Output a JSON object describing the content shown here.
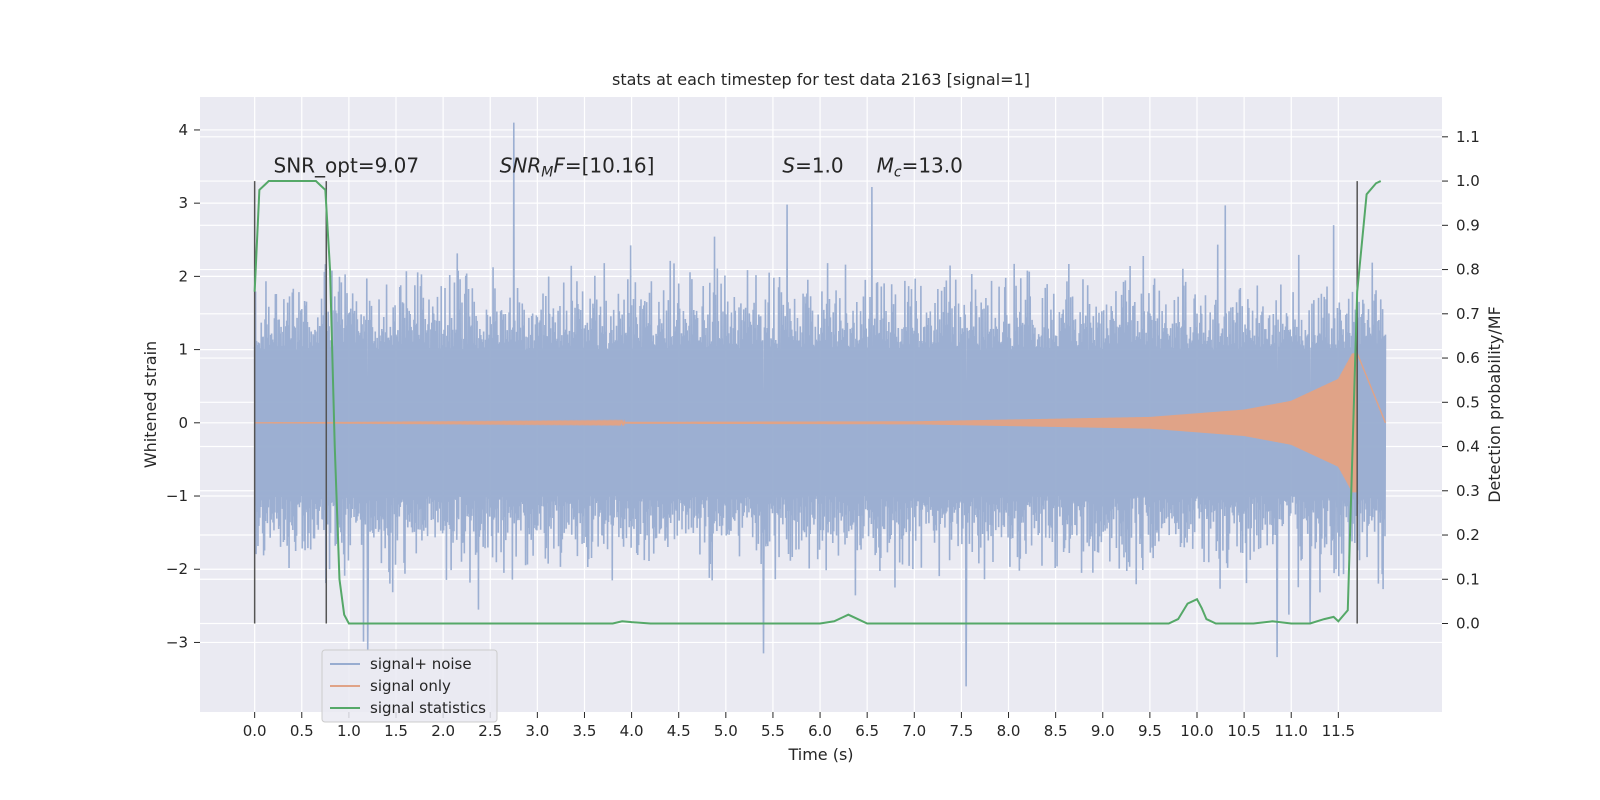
{
  "chart_data": {
    "type": "line",
    "title": "stats at each timestep for test data 2163 [signal=1]",
    "xlabel": "Time (s)",
    "ylabel": "Whitened strain",
    "ylabel_right": "Detection probability/MF",
    "xlim": [
      -0.58,
      12.6
    ],
    "ylim": [
      -3.95,
      4.45
    ],
    "ylim_right": [
      -0.2,
      1.19
    ],
    "x_ticks": [
      "0.0",
      "0.5",
      "1.0",
      "1.5",
      "2.0",
      "2.5",
      "3.0",
      "3.5",
      "4.0",
      "4.5",
      "5.0",
      "5.5",
      "6.0",
      "6.5",
      "7.0",
      "7.5",
      "8.0",
      "8.5",
      "9.0",
      "9.5",
      "10.0",
      "10.5",
      "11.0",
      "11.5"
    ],
    "y_ticks": [
      "4",
      "3",
      "2",
      "1",
      "0",
      "−1",
      "−2",
      "−3"
    ],
    "y_ticks_right": [
      "1.1",
      "1.0",
      "0.9",
      "0.8",
      "0.7",
      "0.6",
      "0.5",
      "0.4",
      "0.3",
      "0.2",
      "0.1",
      "0.0"
    ],
    "grid": true,
    "legend_position": "lower-left",
    "colors": {
      "background": "#eaeaf2",
      "grid": "#ffffff",
      "noise": "#98acd0",
      "signal": "#e0a387",
      "stats": "#55a868",
      "vline": "#555555"
    },
    "series": [
      {
        "name": "signal+ noise",
        "description_values": {
          "t_start": 0.0,
          "t_end": 12.0,
          "typical_range": [
            -1.5,
            1.5
          ],
          "spikes": [
            [
              2.75,
              4.1
            ],
            [
              5.65,
              2.98
            ],
            [
              6.55,
              3.22
            ],
            [
              10.3,
              2.97
            ],
            [
              11.45,
              2.7
            ],
            [
              1.2,
              -3.1
            ],
            [
              5.4,
              -3.15
            ],
            [
              7.55,
              -3.6
            ],
            [
              10.85,
              -3.2
            ],
            [
              11.2,
              -2.75
            ]
          ]
        }
      },
      {
        "name": "signal only",
        "description_values": {
          "t_start": 0.0,
          "t_end": 11.7,
          "amplitude_at": [
            [
              0.0,
              0.0
            ],
            [
              7.0,
              0.02
            ],
            [
              9.5,
              0.08
            ],
            [
              10.5,
              0.18
            ],
            [
              11.0,
              0.3
            ],
            [
              11.5,
              0.6
            ],
            [
              11.65,
              0.95
            ]
          ]
        }
      },
      {
        "name": "signal statistics",
        "x": [
          0.0,
          0.05,
          0.1,
          0.15,
          0.25,
          0.35,
          0.45,
          0.55,
          0.65,
          0.7,
          0.75,
          0.8,
          0.85,
          0.9,
          0.95,
          1.0,
          1.1,
          1.5,
          2.0,
          2.5,
          3.0,
          3.5,
          3.8,
          3.9,
          4.0,
          4.2,
          5.0,
          6.0,
          6.15,
          6.25,
          6.3,
          6.4,
          6.5,
          6.6,
          7.0,
          8.0,
          9.0,
          9.7,
          9.8,
          9.9,
          10.0,
          10.05,
          10.1,
          10.2,
          10.4,
          10.6,
          10.8,
          11.0,
          11.2,
          11.35,
          11.45,
          11.5,
          11.6,
          11.7,
          11.8,
          11.9,
          11.95
        ],
        "values": [
          0.75,
          0.98,
          0.99,
          1.0,
          1.0,
          1.0,
          1.0,
          1.0,
          1.0,
          0.99,
          0.98,
          0.8,
          0.4,
          0.1,
          0.02,
          0.0,
          0.0,
          0.0,
          0.0,
          0.0,
          0.0,
          0.0,
          0.0,
          0.005,
          0.003,
          0.0,
          0.0,
          0.0,
          0.005,
          0.015,
          0.02,
          0.01,
          0.0,
          0.0,
          0.0,
          0.0,
          0.0,
          0.0,
          0.01,
          0.045,
          0.055,
          0.035,
          0.01,
          0.0,
          0.0,
          0.0,
          0.005,
          0.0,
          0.0,
          0.01,
          0.015,
          0.005,
          0.03,
          0.75,
          0.97,
          0.995,
          1.0
        ]
      }
    ],
    "vlines": [
      0.0,
      0.76,
      11.7
    ],
    "vline_right_range": [
      0.0,
      1.0
    ],
    "annotations": [
      {
        "text": "SNR_opt=9.07",
        "x": 0.2,
        "y_right": 1.015
      },
      {
        "text_parts": [
          {
            "t": "SNR",
            "i": true
          },
          {
            "t": "M",
            "i": true,
            "sub": true
          },
          {
            "t": "F",
            "i": true
          },
          {
            "t": "=[10.16]",
            "i": false
          }
        ],
        "x": 2.6,
        "y_right": 1.015
      },
      {
        "text_parts": [
          {
            "t": "S",
            "i": true
          },
          {
            "t": "=1.0",
            "i": false
          }
        ],
        "x": 5.6,
        "y_right": 1.015
      },
      {
        "text_parts": [
          {
            "t": "M",
            "i": true
          },
          {
            "t": "c",
            "i": true,
            "sub": true
          },
          {
            "t": "=13.0",
            "i": false
          }
        ],
        "x": 6.6,
        "y_right": 1.015
      }
    ]
  }
}
